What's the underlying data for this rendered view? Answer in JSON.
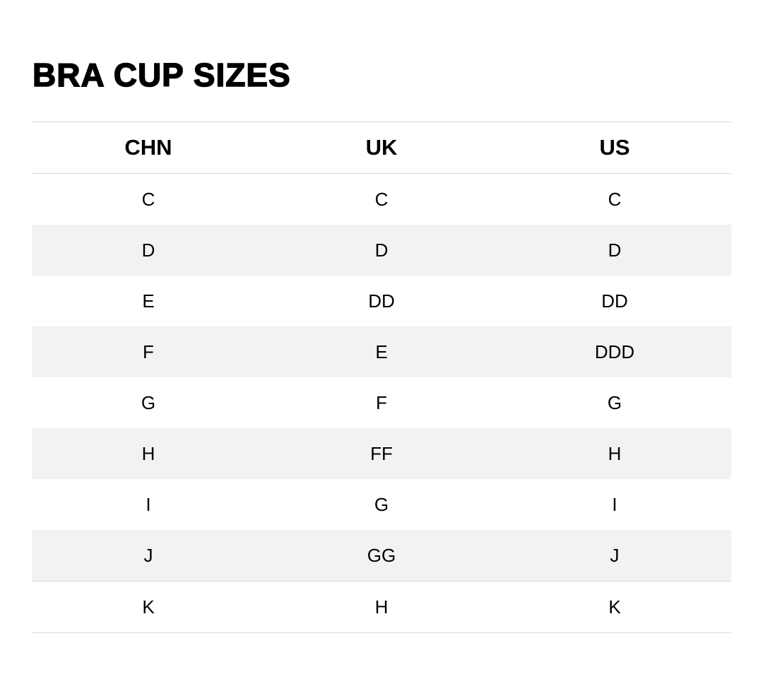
{
  "title": "BRA CUP SIZES",
  "table": {
    "headers": [
      "CHN",
      "UK",
      "US"
    ],
    "rows": [
      [
        "C",
        "C",
        "C"
      ],
      [
        "D",
        "D",
        "D"
      ],
      [
        "E",
        "DD",
        "DD"
      ],
      [
        "F",
        "E",
        "DDD"
      ],
      [
        "G",
        "F",
        "G"
      ],
      [
        "H",
        "FF",
        "H"
      ],
      [
        "I",
        "G",
        "I"
      ],
      [
        "J",
        "GG",
        "J"
      ],
      [
        "K",
        "H",
        "K"
      ]
    ]
  },
  "colors": {
    "stripe": "#f2f2f2",
    "border": "#d9d9d9"
  }
}
